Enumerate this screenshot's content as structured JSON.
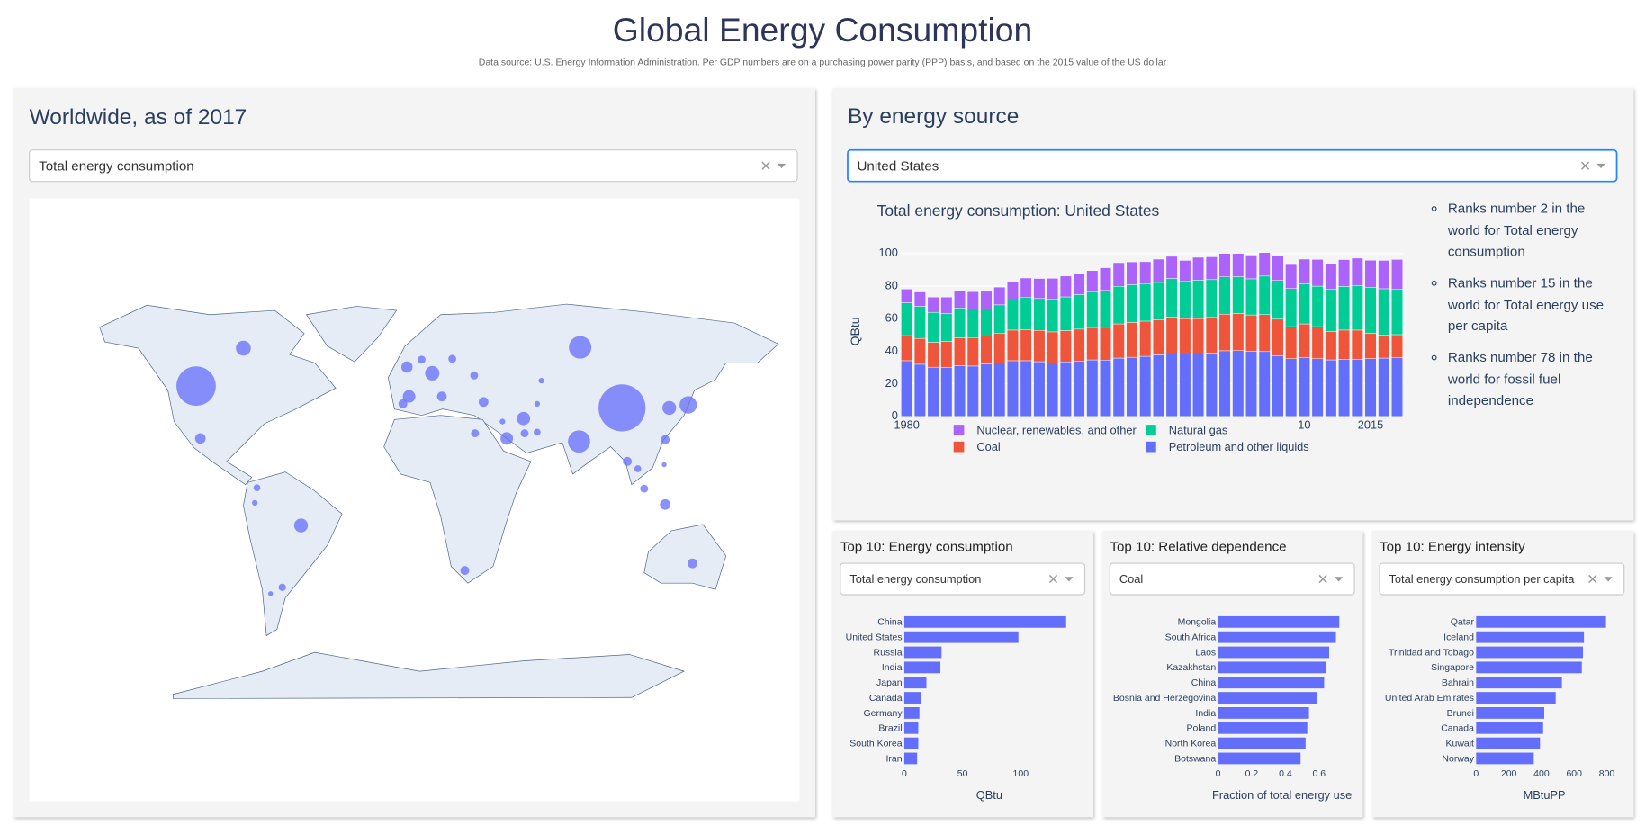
{
  "header": {
    "title": "Global Energy Consumption",
    "subtitle": "Data source: U.S. Energy Information Administration. Per GDP numbers are on a purchasing power parity (PPP) basis, and based on the 2015 value of the US dollar"
  },
  "map_panel": {
    "title": "Worldwide, as of 2017",
    "dropdown": "Total energy consumption"
  },
  "source_panel": {
    "title": "By energy source",
    "dropdown": "United States",
    "facts": [
      "Ranks number 2 in the world for Total energy consumption",
      "Ranks number 15 in the world for Total energy use per capita",
      "Ranks number 78 in the world for fossil fuel independence"
    ]
  },
  "top_panels": [
    {
      "title": "Top 10: Energy consumption",
      "dropdown": "Total energy consumption"
    },
    {
      "title": "Top 10: Relative dependence",
      "dropdown": "Coal"
    },
    {
      "title": "Top 10: Energy intensity",
      "dropdown": "Total energy consumption per capita"
    }
  ],
  "chart_data": [
    {
      "type": "scatter_geo",
      "color": "#636efa",
      "lon": [
        -102.6,
        97.6,
        77.9,
        77.4,
        128.7,
        -80.4,
        8.4,
        -53.3,
        119.8,
        51.3,
        -2.5,
        43.4,
        -100.6,
        117.9,
        -3.5,
        12.9,
        32.5,
        130.7,
        100.1,
        23.7,
        -5.4,
        117.9,
        28.5,
        28.1,
        17.8,
        59.7,
        108,
        51.8,
        -62.1,
        105,
        57.7,
        3.4,
        -74,
        41.4,
        57.7,
        -75,
        -67.6,
        117.4
      ],
      "lat": [
        38.8,
        30.8,
        53,
        18.5,
        31.9,
        52.7,
        43.5,
        -12.3,
        30.8,
        26.9,
        35,
        19.6,
        19.6,
        -4.6,
        45.8,
        35,
        33,
        -26.2,
        11.2,
        -28.8,
        32.3,
        19.2,
        21.5,
        42.7,
        48.8,
        40.8,
        1.2,
        21.5,
        -35,
        8.5,
        21.9,
        48.5,
        1.5,
        25.8,
        32.3,
        -4,
        -37.3,
        10
      ],
      "values": [
        98,
        139,
        32,
        31,
        19,
        14,
        13,
        12,
        12,
        11,
        10,
        10,
        7,
        7,
        8,
        6,
        6,
        6,
        5,
        5,
        5,
        5,
        4,
        4,
        4,
        2,
        4,
        4,
        3.5,
        3,
        3,
        4,
        3,
        2,
        2,
        2,
        1.5,
        1.5
      ]
    },
    {
      "type": "stacked_bar",
      "title": "Total energy consumption: United States",
      "ylabel": "QBtu",
      "legend": "bottom",
      "x": [
        1980,
        1981,
        1982,
        1983,
        1984,
        1985,
        1986,
        1987,
        1988,
        1989,
        1990,
        1991,
        1992,
        1993,
        1994,
        1995,
        1996,
        1997,
        1998,
        1999,
        2000,
        2001,
        2002,
        2003,
        2004,
        2005,
        2006,
        2007,
        2008,
        2009,
        2010,
        2011,
        2012,
        2013,
        2014,
        2015,
        2016,
        2017
      ],
      "xlim": [
        1979.5,
        2017.5
      ],
      "xticks": [
        1980,
        {
          "value": 2010,
          "label": "10"
        },
        2015
      ],
      "ylim": [
        0,
        105
      ],
      "yticks": [
        0,
        20,
        40,
        60,
        80,
        100
      ],
      "grid": true,
      "series": [
        {
          "name": "Petroleum and other liquids",
          "color": "#636efa",
          "values": [
            34.2,
            32.0,
            30.2,
            30.1,
            31.1,
            30.9,
            32.2,
            32.9,
            34.2,
            34.2,
            33.6,
            32.8,
            33.5,
            33.8,
            34.7,
            34.6,
            35.8,
            36.3,
            36.9,
            37.8,
            38.3,
            38.2,
            38.2,
            38.8,
            40.3,
            40.4,
            39.9,
            39.8,
            37.3,
            35.4,
            36.0,
            35.4,
            34.7,
            35.0,
            35.1,
            35.5,
            35.8,
            36.2
          ]
        },
        {
          "name": "Coal",
          "color": "#ef553b",
          "values": [
            15.4,
            15.9,
            15.3,
            15.9,
            17.1,
            17.5,
            17.3,
            18.0,
            18.8,
            19.1,
            19.2,
            19.1,
            19.2,
            19.8,
            19.9,
            20.1,
            21.0,
            21.4,
            21.6,
            21.6,
            22.6,
            21.9,
            21.9,
            22.3,
            22.5,
            22.8,
            22.4,
            22.7,
            22.4,
            19.7,
            20.8,
            19.7,
            17.4,
            18.0,
            17.9,
            15.5,
            14.2,
            14.0
          ]
        },
        {
          "name": "Natural gas",
          "color": "#00cc96",
          "values": [
            20.2,
            19.7,
            18.4,
            17.2,
            18.4,
            17.7,
            16.6,
            17.6,
            18.4,
            19.7,
            19.6,
            20.0,
            20.7,
            21.2,
            21.7,
            22.7,
            23.1,
            23.2,
            22.8,
            22.9,
            23.8,
            22.8,
            23.6,
            22.9,
            22.9,
            22.6,
            22.2,
            23.7,
            23.8,
            23.4,
            24.6,
            24.9,
            26.1,
            26.8,
            27.4,
            28.2,
            28.4,
            28.0
          ]
        },
        {
          "name": "Nuclear, renewables, and other",
          "color": "#ab63fa",
          "values": [
            8.4,
            8.8,
            9.4,
            10.1,
            10.5,
            10.5,
            10.7,
            10.9,
            11.0,
            12.0,
            12.3,
            12.9,
            12.8,
            13.0,
            13.3,
            13.9,
            14.5,
            14.0,
            13.7,
            14.3,
            13.6,
            12.9,
            14.0,
            14.0,
            14.4,
            14.3,
            14.6,
            14.4,
            15.1,
            15.3,
            15.2,
            16.4,
            15.8,
            16.5,
            16.8,
            16.7,
            17.4,
            18.2
          ]
        }
      ]
    },
    {
      "type": "hbar",
      "xlabel": "QBtu",
      "color": "#636efa",
      "categories": [
        "China",
        "United States",
        "Russia",
        "India",
        "Japan",
        "Canada",
        "Germany",
        "Brazil",
        "South Korea",
        "Iran"
      ],
      "values": [
        139,
        98,
        32,
        31,
        19,
        14,
        13,
        12,
        12,
        11
      ],
      "xlim": [
        0,
        146
      ],
      "xticks": [
        0,
        50,
        100
      ]
    },
    {
      "type": "hbar",
      "xlabel": "Fraction of total energy use",
      "color": "#636efa",
      "categories": [
        "Mongolia",
        "South Africa",
        "Laos",
        "Kazakhstan",
        "China",
        "Bosnia and Herzegovina",
        "India",
        "Poland",
        "North Korea",
        "Botswana"
      ],
      "values": [
        0.72,
        0.7,
        0.66,
        0.64,
        0.63,
        0.59,
        0.54,
        0.53,
        0.52,
        0.49
      ],
      "xlim": [
        0,
        0.76
      ],
      "xticks": [
        0,
        0.2,
        0.4,
        0.6
      ]
    },
    {
      "type": "hbar",
      "xlabel": "MBtuPP",
      "color": "#636efa",
      "categories": [
        "Qatar",
        "Iceland",
        "Trinidad and Tobago",
        "Singapore",
        "Bahrain",
        "United Arab Emirates",
        "Brunei",
        "Canada",
        "Kuwait",
        "Norway"
      ],
      "values": [
        795,
        660,
        654,
        647,
        525,
        487,
        417,
        410,
        391,
        353
      ],
      "xlim": [
        0,
        835
      ],
      "xticks": [
        0,
        200,
        400,
        600,
        800
      ]
    }
  ]
}
